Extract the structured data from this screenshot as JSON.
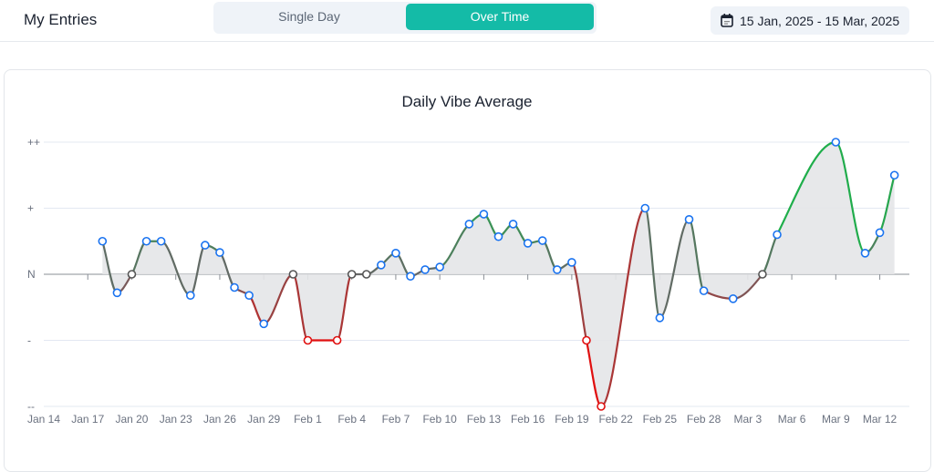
{
  "header": {
    "title": "My Entries",
    "tabs": [
      {
        "label": "Single Day",
        "active": false
      },
      {
        "label": "Over Time",
        "active": true
      }
    ],
    "date_range": "15 Jan, 2025 - 15 Mar, 2025",
    "date_icon": "calendar-icon",
    "accent": "#14bba7"
  },
  "chart_data": {
    "type": "area",
    "title": "Daily Vibe Average",
    "ylim": [
      -2,
      2
    ],
    "y_ticks": [
      {
        "value": 2,
        "label": "++"
      },
      {
        "value": 1,
        "label": "+"
      },
      {
        "value": 0,
        "label": "N"
      },
      {
        "value": -1,
        "label": "-"
      },
      {
        "value": -2,
        "label": "--"
      }
    ],
    "x_ticks": [
      "Jan 14",
      "Jan 17",
      "Jan 20",
      "Jan 23",
      "Jan 26",
      "Jan 29",
      "Feb 1",
      "Feb 4",
      "Feb 7",
      "Feb 10",
      "Feb 13",
      "Feb 16",
      "Feb 19",
      "Feb 22",
      "Feb 25",
      "Feb 28",
      "Mar 3",
      "Mar 6",
      "Mar 9",
      "Mar 12"
    ],
    "xlim": [
      "2025-01-14",
      "2025-03-13"
    ],
    "grid": true,
    "colors": {
      "positive": "#1fae4b",
      "negative": "#e01010",
      "neutral": "#666666",
      "point_positive": "#1a73f0",
      "fill": "#e4e5e8"
    },
    "points": [
      [
        "2025-01-18",
        0.5
      ],
      [
        "2025-01-19",
        -0.28
      ],
      [
        "2025-01-20",
        0
      ],
      [
        "2025-01-21",
        0.5
      ],
      [
        "2025-01-22",
        0.5
      ],
      [
        "2025-01-24",
        -0.32
      ],
      [
        "2025-01-25",
        0.44
      ],
      [
        "2025-01-26",
        0.33
      ],
      [
        "2025-01-27",
        -0.2
      ],
      [
        "2025-01-28",
        -0.32
      ],
      [
        "2025-01-29",
        -0.75
      ],
      [
        "2025-01-31",
        0
      ],
      [
        "2025-02-01",
        -1
      ],
      [
        "2025-02-03",
        -1
      ],
      [
        "2025-02-04",
        0
      ],
      [
        "2025-02-05",
        0
      ],
      [
        "2025-02-06",
        0.14
      ],
      [
        "2025-02-07",
        0.32
      ],
      [
        "2025-02-08",
        -0.03
      ],
      [
        "2025-02-09",
        0.07
      ],
      [
        "2025-02-10",
        0.11
      ],
      [
        "2025-02-12",
        0.76
      ],
      [
        "2025-02-13",
        0.91
      ],
      [
        "2025-02-14",
        0.57
      ],
      [
        "2025-02-15",
        0.76
      ],
      [
        "2025-02-16",
        0.47
      ],
      [
        "2025-02-17",
        0.51
      ],
      [
        "2025-02-18",
        0.07
      ],
      [
        "2025-02-19",
        0.18
      ],
      [
        "2025-02-20",
        -1
      ],
      [
        "2025-02-21",
        -2
      ],
      [
        "2025-02-24",
        1
      ],
      [
        "2025-02-25",
        -0.66
      ],
      [
        "2025-02-27",
        0.83
      ],
      [
        "2025-02-28",
        -0.25
      ],
      [
        "2025-03-02",
        -0.37
      ],
      [
        "2025-03-04",
        0
      ],
      [
        "2025-03-05",
        0.6
      ],
      [
        "2025-03-09",
        2
      ],
      [
        "2025-03-11",
        0.32
      ],
      [
        "2025-03-12",
        0.63
      ],
      [
        "2025-03-13",
        1.5
      ]
    ]
  }
}
